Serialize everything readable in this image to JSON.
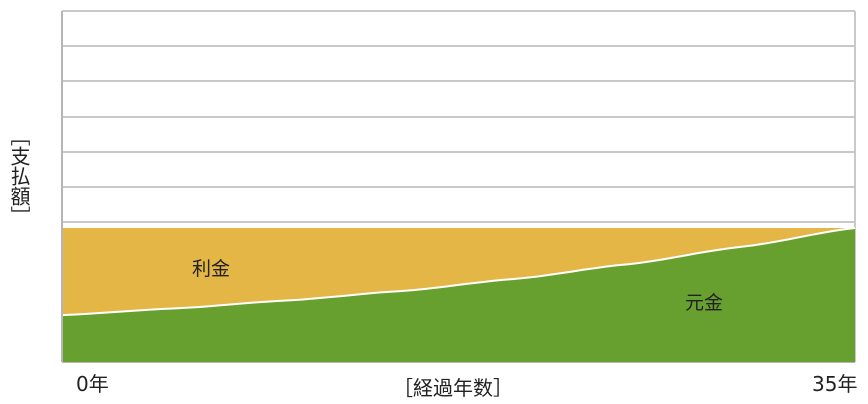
{
  "chart_data": {
    "type": "area",
    "title": "",
    "xlabel": "［経過年数］",
    "ylabel": "［支払額］",
    "x_tick_labels": [
      "0年",
      "35年"
    ],
    "xlim": [
      0,
      35
    ],
    "grid": true,
    "legend": "none",
    "x": [
      0,
      5,
      10,
      15,
      20,
      25,
      30,
      35
    ],
    "series": [
      {
        "name": "元金",
        "color": "#67a02e",
        "values": [
          35,
          40,
          46,
          53,
          62,
          73,
          86,
          100
        ]
      },
      {
        "name": "利金",
        "color": "#e3b646",
        "values": [
          65,
          60,
          54,
          47,
          38,
          27,
          14,
          0
        ]
      }
    ],
    "total_payment_relative": 100
  },
  "colors": {
    "principal": "#67a02e",
    "interest": "#e3b646",
    "grid": "#c9c9c9",
    "axis": "#b5b5b5",
    "boundary": "#ffffff"
  }
}
